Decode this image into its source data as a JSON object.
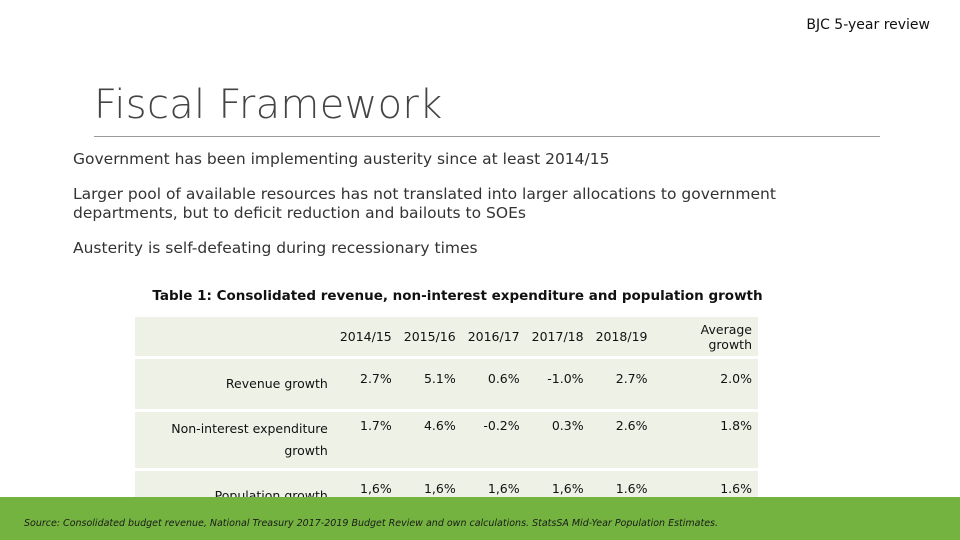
{
  "header": {
    "tag": "BJC 5-year review"
  },
  "title": "Fiscal Framework",
  "bullets": [
    "Government has been implementing austerity since at least 2014/15",
    "Larger pool of available resources has not translated into larger allocations to government departments, but to deficit reduction and bailouts to SOEs",
    "Austerity is self-defeating during recessionary times"
  ],
  "table": {
    "caption": "Table 1: Consolidated revenue, non-interest expenditure and population growth",
    "columns": [
      "2014/15",
      "2015/16",
      "2016/17",
      "2017/18",
      "2018/19",
      "Average growth"
    ],
    "rows": [
      {
        "label": "Revenue growth",
        "values": [
          "2.7%",
          "5.1%",
          "0.6%",
          "-1.0%",
          "2.7%",
          "2.0%"
        ]
      },
      {
        "label": "Non-interest expenditure growth",
        "values": [
          "1.7%",
          "4.6%",
          "-0.2%",
          "0.3%",
          "2.6%",
          "1.8%"
        ]
      },
      {
        "label": "Population growth",
        "values": [
          "1,6%",
          "1,6%",
          "1,6%",
          "1,6%",
          "1.6%",
          "1.6%"
        ]
      }
    ]
  },
  "footer": {
    "source": "Source: Consolidated budget revenue, National Treasury 2017-2019 Budget Review and own calculations. StatsSA Mid-Year Population Estimates.",
    "bar_color": "#74b33f"
  }
}
